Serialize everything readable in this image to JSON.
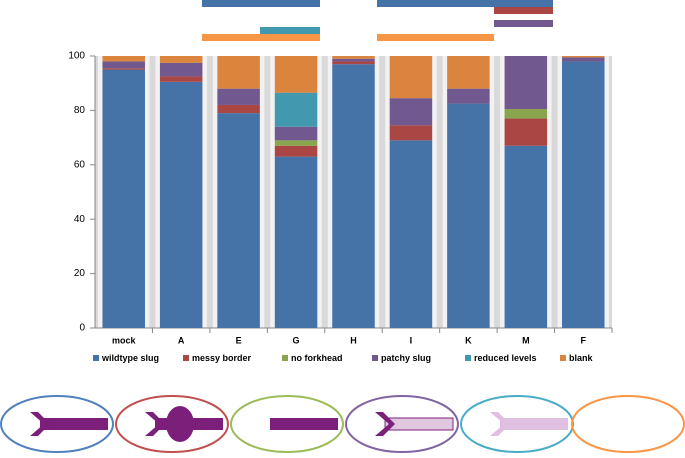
{
  "chart_data": {
    "type": "bar",
    "stacked": true,
    "categories": [
      "mock",
      "A",
      "E",
      "G",
      "H",
      "I",
      "K",
      "M",
      "F"
    ],
    "series": [
      {
        "name": "wildtype slug",
        "color": "#4572a7",
        "values": [
          95,
          90.5,
          79,
          63,
          97,
          69,
          82.5,
          67,
          98
        ]
      },
      {
        "name": "messy border",
        "color": "#aa4643",
        "values": [
          0.5,
          2,
          3,
          4,
          1,
          5.5,
          0,
          10,
          0
        ]
      },
      {
        "name": "no forkhead",
        "color": "#89a54e",
        "values": [
          0,
          0,
          0,
          2,
          0,
          0,
          0,
          3.5,
          0
        ]
      },
      {
        "name": "patchy  slug",
        "color": "#71588f",
        "values": [
          2.5,
          5,
          6,
          5,
          1,
          10,
          5.5,
          19.5,
          1.5
        ]
      },
      {
        "name": "reduced  levels",
        "color": "#4198af",
        "values": [
          0,
          0,
          0,
          12.5,
          0,
          0,
          0,
          0,
          0
        ]
      },
      {
        "name": "blank",
        "color": "#db843d",
        "values": [
          2,
          2.5,
          12,
          13.5,
          1,
          15.5,
          12,
          0,
          0.5
        ]
      }
    ],
    "ylim": [
      0,
      100
    ],
    "yticks": [
      0,
      20,
      40,
      60,
      80,
      100
    ],
    "grid": false
  }
}
